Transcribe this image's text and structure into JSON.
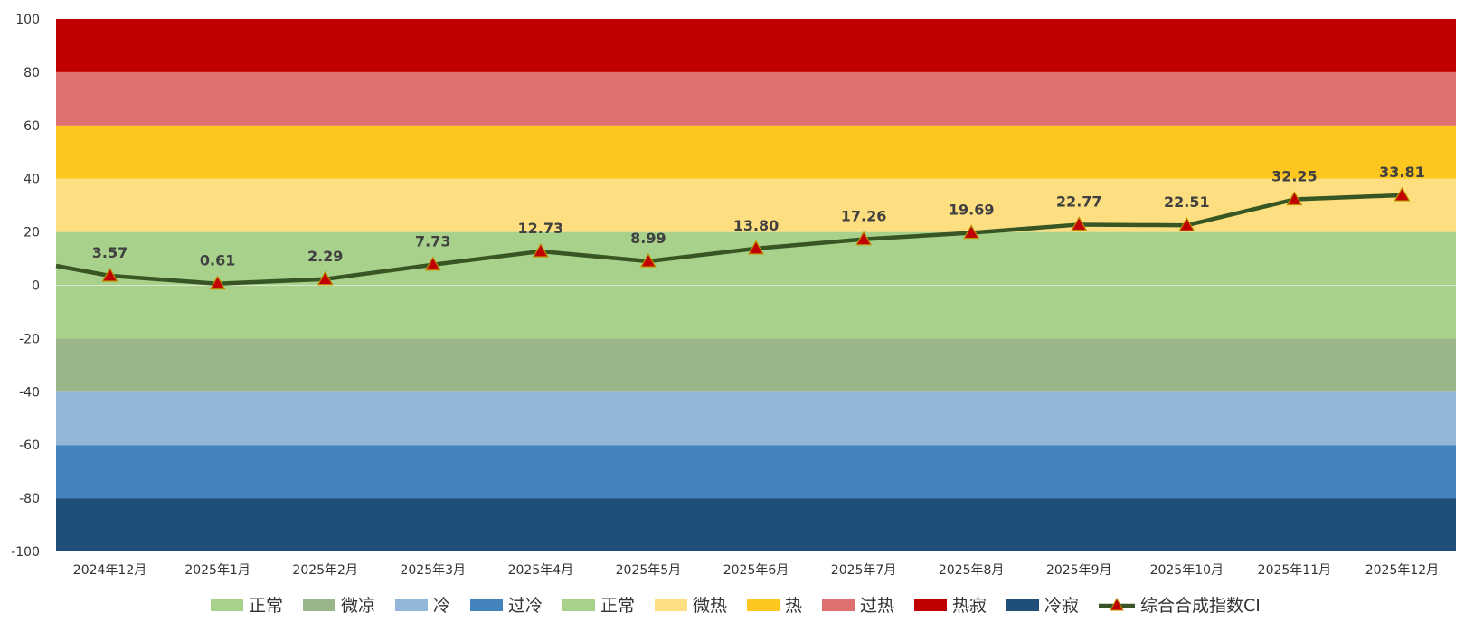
{
  "chart_data": {
    "type": "line",
    "title": "",
    "xlabel": "",
    "ylabel": "",
    "ylim": [
      -100,
      100
    ],
    "yticks": [
      100,
      80,
      60,
      40,
      20,
      0,
      -20,
      -40,
      -60,
      -80,
      -100
    ],
    "categories": [
      "2024年12月",
      "2025年1月",
      "2025年2月",
      "2025年3月",
      "2025年4月",
      "2025年5月",
      "2025年6月",
      "2025年7月",
      "2025年8月",
      "2025年9月",
      "2025年10月",
      "2025年11月",
      "2025年12月"
    ],
    "bands": [
      {
        "name": "冷寂",
        "from": -100,
        "to": -80,
        "color": "#1F4E79"
      },
      {
        "name": "过冷",
        "from": -80,
        "to": -60,
        "color": "#4484BE"
      },
      {
        "name": "冷",
        "from": -60,
        "to": -40,
        "color": "#92B6D8"
      },
      {
        "name": "微凉",
        "from": -40,
        "to": -20,
        "color": "#9AB689"
      },
      {
        "name": "正常",
        "from": -20,
        "to": 0,
        "color": "#A8D18C"
      },
      {
        "name": "正常",
        "from": 0,
        "to": 20,
        "color": "#A8D18C"
      },
      {
        "name": "微热",
        "from": 20,
        "to": 40,
        "color": "#FDDE80"
      },
      {
        "name": "热",
        "from": 40,
        "to": 60,
        "color": "#FDC720"
      },
      {
        "name": "过热",
        "from": 60,
        "to": 80,
        "color": "#DE706F"
      },
      {
        "name": "热寂",
        "from": 80,
        "to": 100,
        "color": "#C00000"
      }
    ],
    "series": [
      {
        "name": "综合合成指数CI",
        "line_color": "#375623",
        "marker_color": "#C00000",
        "marker_edge": "#C09000",
        "start_value": 7.3,
        "values": [
          3.57,
          0.61,
          2.29,
          7.73,
          12.73,
          8.99,
          13.8,
          17.26,
          19.69,
          22.77,
          22.51,
          32.25,
          33.81
        ],
        "labels": [
          "3.57",
          "0.61",
          "2.29",
          "7.73",
          "12.73",
          "8.99",
          "13.80",
          "17.26",
          "19.69",
          "22.77",
          "22.51",
          "32.25",
          "33.81"
        ]
      }
    ],
    "legend": {
      "position": "bottom",
      "items": [
        {
          "label": "正常",
          "color": "#A8D18C",
          "kind": "box"
        },
        {
          "label": "微凉",
          "color": "#9AB689",
          "kind": "box"
        },
        {
          "label": "冷",
          "color": "#92B6D8",
          "kind": "box"
        },
        {
          "label": "过冷",
          "color": "#4484BE",
          "kind": "box"
        },
        {
          "label": "正常",
          "color": "#A8D18C",
          "kind": "box"
        },
        {
          "label": "微热",
          "color": "#FDDE80",
          "kind": "box"
        },
        {
          "label": "热",
          "color": "#FDC720",
          "kind": "box"
        },
        {
          "label": "过热",
          "color": "#DE706F",
          "kind": "box"
        },
        {
          "label": "热寂",
          "color": "#C00000",
          "kind": "box"
        },
        {
          "label": "冷寂",
          "color": "#1F4E79",
          "kind": "box"
        },
        {
          "label": "综合合成指数CI",
          "color": "#375623",
          "kind": "line"
        }
      ]
    }
  }
}
